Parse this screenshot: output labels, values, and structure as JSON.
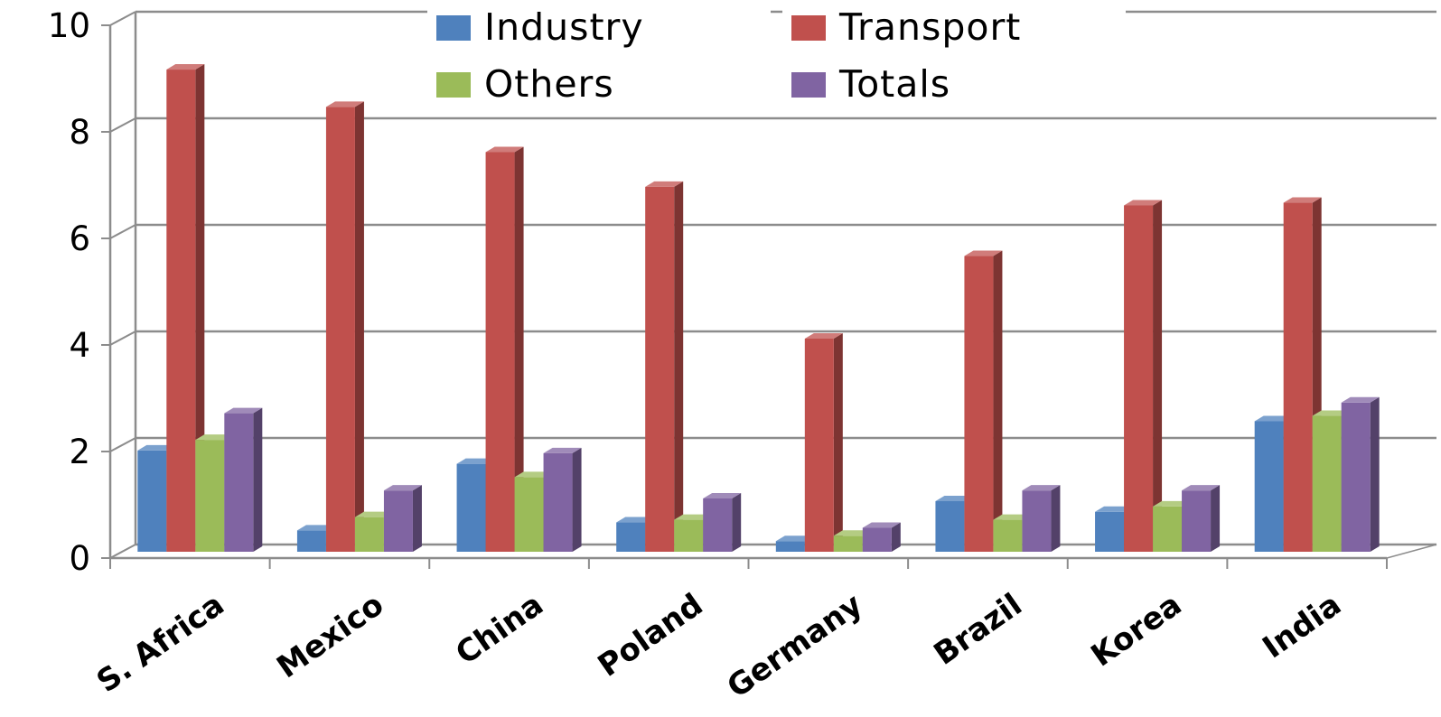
{
  "chart_data": {
    "type": "bar",
    "style": "3d-clustered-column",
    "categories": [
      "S. Africa",
      "Mexico",
      "China",
      "Poland",
      "Germany",
      "Brazil",
      "Korea",
      "India"
    ],
    "series": [
      {
        "name": "Industry",
        "color": "#4F81BD",
        "values": [
          1.9,
          0.4,
          1.65,
          0.55,
          0.2,
          0.95,
          0.75,
          2.45
        ]
      },
      {
        "name": "Transport",
        "color": "#C0504D",
        "values": [
          9.05,
          8.35,
          7.5,
          6.85,
          4.0,
          5.55,
          6.5,
          6.55
        ]
      },
      {
        "name": "Others",
        "color": "#9BBB59",
        "values": [
          2.1,
          0.65,
          1.4,
          0.6,
          0.3,
          0.6,
          0.85,
          2.55
        ]
      },
      {
        "name": "Totals",
        "color": "#8064A2",
        "values": [
          2.6,
          1.15,
          1.85,
          1.0,
          0.45,
          1.15,
          1.15,
          2.8
        ]
      }
    ],
    "ylim": [
      0,
      10
    ],
    "yticks": [
      "0",
      "2",
      "4",
      "6",
      "8",
      "10"
    ],
    "grid": true,
    "legend_position": "top-center",
    "title": "",
    "xlabel": "",
    "ylabel": ""
  }
}
